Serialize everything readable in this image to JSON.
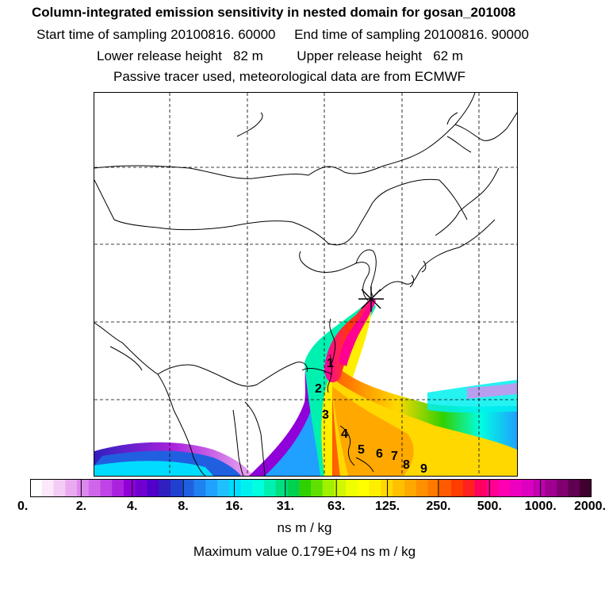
{
  "header": {
    "title": "Column-integrated emission sensitivity in nested domain for gosan_201008",
    "line2": "Start time of sampling 20100816. 60000     End time of sampling 20100816. 90000",
    "line3": "Lower release height   82 m         Upper release height   62 m",
    "line4": "Passive tracer used, meteorological data are from ECMWF"
  },
  "map": {
    "day_labels": [
      "1",
      "2",
      "3",
      "4",
      "5",
      "6",
      "7",
      "8",
      "9"
    ],
    "release_marker": "release-site-star"
  },
  "colorbar": {
    "ticks": [
      "0.",
      "2.",
      "4.",
      "8.",
      "16.",
      "31.",
      "63.",
      "125.",
      "250.",
      "500.",
      "1000.",
      "2000."
    ],
    "colors": [
      "#ffffff",
      "#fbe8fb",
      "#f3ccf5",
      "#e9aaf0",
      "#dd88ee",
      "#cf66ea",
      "#bf44e6",
      "#aa22dd",
      "#9000d8",
      "#7000d0",
      "#5000c8",
      "#3020c0",
      "#2040d0",
      "#2060e0",
      "#2080f0",
      "#20a0ff",
      "#20c0ff",
      "#00dcff",
      "#00f0f0",
      "#00ffe0",
      "#00f0b0",
      "#00e080",
      "#00d050",
      "#30d000",
      "#60e000",
      "#a0f000",
      "#d0f800",
      "#f0ff00",
      "#ffff00",
      "#ffee00",
      "#ffd800",
      "#ffc000",
      "#ffa800",
      "#ff9000",
      "#ff7800",
      "#ff5a00",
      "#ff3c00",
      "#ff2020",
      "#ff0060",
      "#ff0090",
      "#ff00b0",
      "#ee00c0",
      "#dd00c0",
      "#c000b0",
      "#a00090",
      "#800070",
      "#600050",
      "#400030"
    ],
    "units": "ns m / kg",
    "max_value": "Maximum value  0.179E+04 ns m / kg"
  }
}
